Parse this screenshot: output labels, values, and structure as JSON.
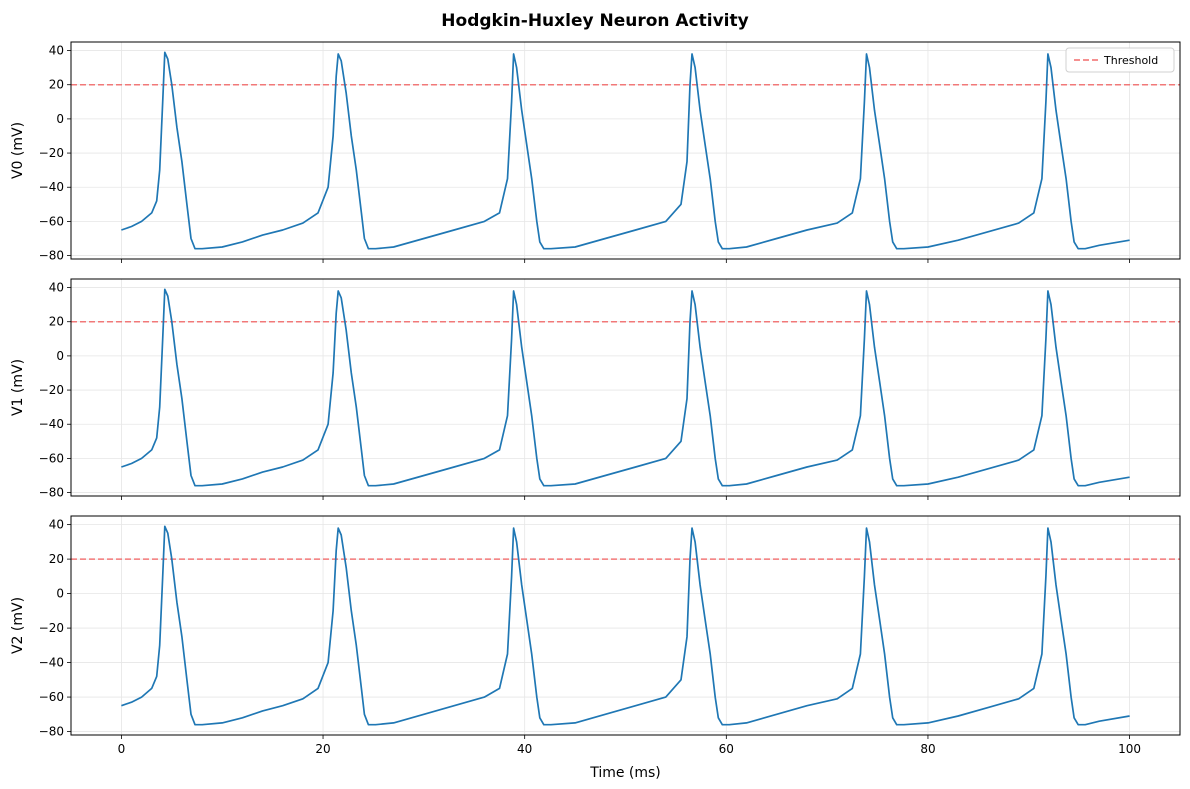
{
  "figure": {
    "title": "Hodgkin-Huxley Neuron Activity"
  },
  "chart_data": [
    {
      "type": "line",
      "ylabel": "V0 (mV)",
      "xlabel": "",
      "xlim": [
        -5,
        105
      ],
      "ylim": [
        -82,
        45
      ],
      "xticks": [
        0,
        20,
        40,
        60,
        80,
        100
      ],
      "yticks": [
        -80,
        -60,
        -40,
        -20,
        0,
        20,
        40
      ],
      "show_xtick_labels": false,
      "grid": true,
      "legend": {
        "position": "top-right",
        "entries": [
          "Threshold"
        ]
      },
      "threshold": {
        "name": "Threshold",
        "y": 20,
        "color": "#f26b6b",
        "style": "dashed"
      },
      "series": [
        {
          "color": "#1f77b4",
          "x": [
            0,
            1,
            2,
            3,
            3.5,
            3.8,
            4.1,
            4.3,
            4.6,
            5,
            5.5,
            6,
            6.5,
            6.9,
            7.3,
            8,
            10,
            12,
            14,
            16,
            18,
            19.5,
            20.5,
            21,
            21.3,
            21.5,
            21.8,
            22.3,
            22.8,
            23.3,
            23.8,
            24.1,
            24.5,
            25.2,
            27,
            30,
            33,
            36,
            37.5,
            38.3,
            38.7,
            38.9,
            39.2,
            39.7,
            40.2,
            40.7,
            41.2,
            41.5,
            41.9,
            42.6,
            45,
            48,
            51,
            54,
            55.5,
            56.1,
            56.4,
            56.6,
            56.9,
            57.4,
            57.9,
            58.4,
            58.9,
            59.2,
            59.6,
            60.3,
            62,
            65,
            68,
            71,
            72.5,
            73.3,
            73.7,
            73.9,
            74.2,
            74.7,
            75.2,
            75.7,
            76.2,
            76.5,
            76.9,
            77.6,
            80,
            83,
            86,
            89,
            90.5,
            91.3,
            91.7,
            91.9,
            92.2,
            92.7,
            93.2,
            93.7,
            94.2,
            94.5,
            94.9,
            95.6,
            97,
            100
          ],
          "values": [
            -65,
            -63,
            -60,
            -55,
            -48,
            -30,
            10,
            39,
            35,
            20,
            -5,
            -25,
            -50,
            -70,
            -76,
            -76,
            -75,
            -72,
            -68,
            -65,
            -61,
            -55,
            -40,
            -10,
            25,
            38,
            34,
            15,
            -10,
            -30,
            -55,
            -70,
            -76,
            -76,
            -75,
            -70,
            -65,
            -60,
            -55,
            -35,
            10,
            38,
            30,
            5,
            -15,
            -35,
            -60,
            -72,
            -76,
            -76,
            -75,
            -70,
            -65,
            -60,
            -50,
            -25,
            20,
            38,
            30,
            5,
            -15,
            -35,
            -60,
            -72,
            -76,
            -76,
            -75,
            -70,
            -65,
            -61,
            -55,
            -35,
            10,
            38,
            30,
            5,
            -15,
            -35,
            -60,
            -72,
            -76,
            -76,
            -75,
            -71,
            -66,
            -61,
            -55,
            -35,
            10,
            38,
            30,
            5,
            -15,
            -35,
            -60,
            -72,
            -76,
            -76,
            -74,
            -71
          ]
        }
      ]
    },
    {
      "type": "line",
      "ylabel": "V1 (mV)",
      "xlabel": "",
      "xlim": [
        -5,
        105
      ],
      "ylim": [
        -82,
        45
      ],
      "xticks": [
        0,
        20,
        40,
        60,
        80,
        100
      ],
      "yticks": [
        -80,
        -60,
        -40,
        -20,
        0,
        20,
        40
      ],
      "show_xtick_labels": false,
      "grid": true,
      "threshold": {
        "y": 20,
        "color": "#f26b6b",
        "style": "dashed"
      },
      "series": [
        {
          "color": "#1f77b4",
          "x": [
            0,
            1,
            2,
            3,
            3.5,
            3.8,
            4.1,
            4.3,
            4.6,
            5,
            5.5,
            6,
            6.5,
            6.9,
            7.3,
            8,
            10,
            12,
            14,
            16,
            18,
            19.5,
            20.5,
            21,
            21.3,
            21.5,
            21.8,
            22.3,
            22.8,
            23.3,
            23.8,
            24.1,
            24.5,
            25.2,
            27,
            30,
            33,
            36,
            37.5,
            38.3,
            38.7,
            38.9,
            39.2,
            39.7,
            40.2,
            40.7,
            41.2,
            41.5,
            41.9,
            42.6,
            45,
            48,
            51,
            54,
            55.5,
            56.1,
            56.4,
            56.6,
            56.9,
            57.4,
            57.9,
            58.4,
            58.9,
            59.2,
            59.6,
            60.3,
            62,
            65,
            68,
            71,
            72.5,
            73.3,
            73.7,
            73.9,
            74.2,
            74.7,
            75.2,
            75.7,
            76.2,
            76.5,
            76.9,
            77.6,
            80,
            83,
            86,
            89,
            90.5,
            91.3,
            91.7,
            91.9,
            92.2,
            92.7,
            93.2,
            93.7,
            94.2,
            94.5,
            94.9,
            95.6,
            97,
            100
          ],
          "values": [
            -65,
            -63,
            -60,
            -55,
            -48,
            -30,
            10,
            39,
            35,
            20,
            -5,
            -25,
            -50,
            -70,
            -76,
            -76,
            -75,
            -72,
            -68,
            -65,
            -61,
            -55,
            -40,
            -10,
            25,
            38,
            34,
            15,
            -10,
            -30,
            -55,
            -70,
            -76,
            -76,
            -75,
            -70,
            -65,
            -60,
            -55,
            -35,
            10,
            38,
            30,
            5,
            -15,
            -35,
            -60,
            -72,
            -76,
            -76,
            -75,
            -70,
            -65,
            -60,
            -50,
            -25,
            20,
            38,
            30,
            5,
            -15,
            -35,
            -60,
            -72,
            -76,
            -76,
            -75,
            -70,
            -65,
            -61,
            -55,
            -35,
            10,
            38,
            30,
            5,
            -15,
            -35,
            -60,
            -72,
            -76,
            -76,
            -75,
            -71,
            -66,
            -61,
            -55,
            -35,
            10,
            38,
            30,
            5,
            -15,
            -35,
            -60,
            -72,
            -76,
            -76,
            -74,
            -71
          ]
        }
      ]
    },
    {
      "type": "line",
      "ylabel": "V2 (mV)",
      "xlabel": "Time (ms)",
      "xlim": [
        -5,
        105
      ],
      "ylim": [
        -82,
        45
      ],
      "xticks": [
        0,
        20,
        40,
        60,
        80,
        100
      ],
      "yticks": [
        -80,
        -60,
        -40,
        -20,
        0,
        20,
        40
      ],
      "show_xtick_labels": true,
      "grid": true,
      "threshold": {
        "y": 20,
        "color": "#f26b6b",
        "style": "dashed"
      },
      "series": [
        {
          "color": "#1f77b4",
          "x": [
            0,
            1,
            2,
            3,
            3.5,
            3.8,
            4.1,
            4.3,
            4.6,
            5,
            5.5,
            6,
            6.5,
            6.9,
            7.3,
            8,
            10,
            12,
            14,
            16,
            18,
            19.5,
            20.5,
            21,
            21.3,
            21.5,
            21.8,
            22.3,
            22.8,
            23.3,
            23.8,
            24.1,
            24.5,
            25.2,
            27,
            30,
            33,
            36,
            37.5,
            38.3,
            38.7,
            38.9,
            39.2,
            39.7,
            40.2,
            40.7,
            41.2,
            41.5,
            41.9,
            42.6,
            45,
            48,
            51,
            54,
            55.5,
            56.1,
            56.4,
            56.6,
            56.9,
            57.4,
            57.9,
            58.4,
            58.9,
            59.2,
            59.6,
            60.3,
            62,
            65,
            68,
            71,
            72.5,
            73.3,
            73.7,
            73.9,
            74.2,
            74.7,
            75.2,
            75.7,
            76.2,
            76.5,
            76.9,
            77.6,
            80,
            83,
            86,
            89,
            90.5,
            91.3,
            91.7,
            91.9,
            92.2,
            92.7,
            93.2,
            93.7,
            94.2,
            94.5,
            94.9,
            95.6,
            97,
            100
          ],
          "values": [
            -65,
            -63,
            -60,
            -55,
            -48,
            -30,
            10,
            39,
            35,
            20,
            -5,
            -25,
            -50,
            -70,
            -76,
            -76,
            -75,
            -72,
            -68,
            -65,
            -61,
            -55,
            -40,
            -10,
            25,
            38,
            34,
            15,
            -10,
            -30,
            -55,
            -70,
            -76,
            -76,
            -75,
            -70,
            -65,
            -60,
            -55,
            -35,
            10,
            38,
            30,
            5,
            -15,
            -35,
            -60,
            -72,
            -76,
            -76,
            -75,
            -70,
            -65,
            -60,
            -50,
            -25,
            20,
            38,
            30,
            5,
            -15,
            -35,
            -60,
            -72,
            -76,
            -76,
            -75,
            -70,
            -65,
            -61,
            -55,
            -35,
            10,
            38,
            30,
            5,
            -15,
            -35,
            -60,
            -72,
            -76,
            -76,
            -75,
            -71,
            -66,
            -61,
            -55,
            -35,
            10,
            38,
            30,
            5,
            -15,
            -35,
            -60,
            -72,
            -76,
            -76,
            -74,
            -71
          ]
        }
      ]
    }
  ]
}
